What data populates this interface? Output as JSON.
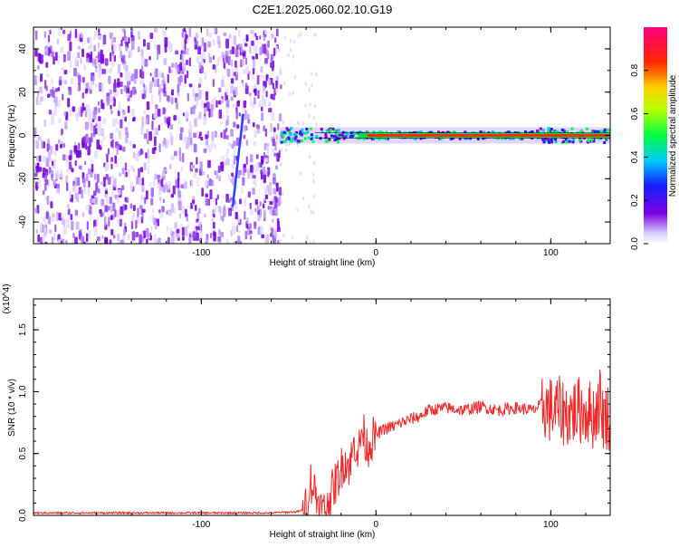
{
  "chart_data": [
    {
      "type": "heatmap",
      "title": "C2E1.2025.060.02.10.G19",
      "xlabel": "Height of straight line (km)",
      "ylabel": "Frequency (Hz)",
      "xlim": [
        -196,
        134
      ],
      "ylim": [
        -50,
        50
      ],
      "xticks": [
        -100,
        0,
        100
      ],
      "yticks": [
        -40,
        -20,
        0,
        20,
        40
      ],
      "grid": false,
      "colormap": "rainbow (white/violet low to red/magenta high)",
      "colorbar": {
        "label": "Normalized spectral amplitude",
        "ticks": [
          0.0,
          0.2,
          0.4,
          0.6,
          0.8
        ],
        "range": [
          0,
          1
        ]
      },
      "features": [
        {
          "name": "noise",
          "x_range": [
            -196,
            -55
          ],
          "y_range": [
            -50,
            50
          ],
          "amplitude": 0.15
        },
        {
          "name": "dominant-frequency-line",
          "x_range": [
            -55,
            134
          ],
          "y_center": 0,
          "amplitude": 0.9
        }
      ]
    },
    {
      "type": "line",
      "xlabel": "Height of straight line (km)",
      "ylabel": "SNR (10 * v/v)",
      "y_multiplier": "(x10^4)",
      "xlim": [
        -196,
        134
      ],
      "ylim": [
        0,
        1.75
      ],
      "xticks": [
        -100,
        0,
        100
      ],
      "yticks": [
        0.0,
        0.5,
        1.0,
        1.5
      ],
      "color": "#ee2a2a",
      "grid": false,
      "series": [
        {
          "x": [
            -196,
            -150,
            -100,
            -60,
            -45,
            -40,
            -38,
            -35,
            -32,
            -28,
            -25,
            -22,
            -18,
            -15,
            -12,
            -10,
            -8,
            -5,
            -3,
            0,
            5,
            10,
            15,
            20,
            25,
            30,
            40,
            50,
            60,
            70,
            80,
            90,
            95,
            100,
            105,
            110,
            115,
            120,
            125,
            128,
            130,
            134
          ],
          "y": [
            0.02,
            0.02,
            0.02,
            0.02,
            0.03,
            0.05,
            0.3,
            0.2,
            0.05,
            0.03,
            0.2,
            0.3,
            0.45,
            0.4,
            0.6,
            0.5,
            0.7,
            0.55,
            0.6,
            0.65,
            0.7,
            0.72,
            0.75,
            0.78,
            0.8,
            0.85,
            0.87,
            0.85,
            0.88,
            0.85,
            0.87,
            0.85,
            0.9,
            0.85,
            0.85,
            0.82,
            0.85,
            0.85,
            0.8,
            0.95,
            0.8,
            0.8
          ]
        }
      ]
    }
  ]
}
